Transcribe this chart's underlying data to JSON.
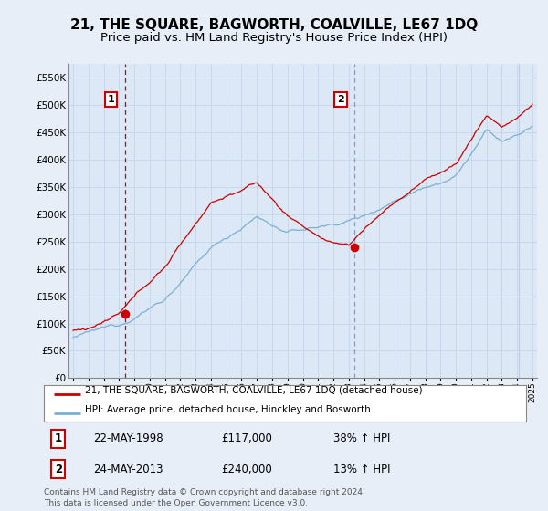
{
  "title": "21, THE SQUARE, BAGWORTH, COALVILLE, LE67 1DQ",
  "subtitle": "Price paid vs. HM Land Registry's House Price Index (HPI)",
  "legend_line1": "21, THE SQUARE, BAGWORTH, COALVILLE, LE67 1DQ (detached house)",
  "legend_line2": "HPI: Average price, detached house, Hinckley and Bosworth",
  "annotation1_date": "22-MAY-1998",
  "annotation1_price": "£117,000",
  "annotation1_hpi": "38% ↑ HPI",
  "annotation2_date": "24-MAY-2013",
  "annotation2_price": "£240,000",
  "annotation2_hpi": "13% ↑ HPI",
  "copyright": "Contains HM Land Registry data © Crown copyright and database right 2024.\nThis data is licensed under the Open Government Licence v3.0.",
  "sale1_x": 1998.38,
  "sale1_y": 117000,
  "sale2_x": 2013.38,
  "sale2_y": 240000,
  "ylim": [
    0,
    575000
  ],
  "xlim": [
    1994.7,
    2025.3
  ],
  "yticks": [
    0,
    50000,
    100000,
    150000,
    200000,
    250000,
    300000,
    350000,
    400000,
    450000,
    500000,
    550000
  ],
  "background_color": "#e8eef8",
  "plot_bg_color": "#dce8f5",
  "grid_color": "#c8d8ec",
  "hpi_color": "#7ab0d4",
  "price_color": "#cc0000",
  "vline1_color": "#cc0000",
  "vline2_color": "#8899bb",
  "hatch_color": "#c0cce0",
  "title_fontsize": 11,
  "subtitle_fontsize": 9.5
}
